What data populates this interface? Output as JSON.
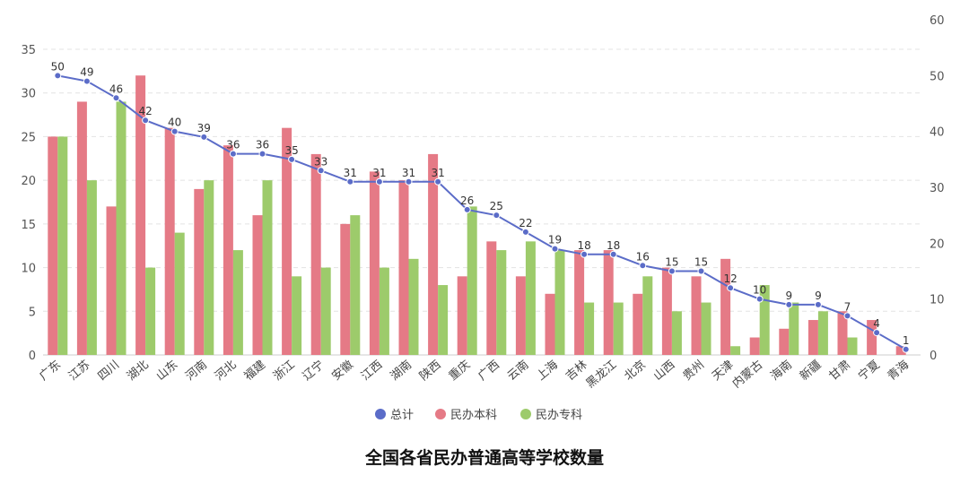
{
  "chart_data": {
    "type": "bar+line",
    "title": "全国各省民办普通高等学校数量",
    "categories": [
      "广东",
      "江苏",
      "四川",
      "湖北",
      "山东",
      "河南",
      "河北",
      "福建",
      "浙江",
      "辽宁",
      "安徽",
      "江西",
      "湖南",
      "陕西",
      "重庆",
      "广西",
      "云南",
      "上海",
      "吉林",
      "黑龙江",
      "北京",
      "山西",
      "贵州",
      "天津",
      "内蒙古",
      "海南",
      "新疆",
      "甘肃",
      "宁夏",
      "青海"
    ],
    "series": [
      {
        "name": "总计",
        "type": "line",
        "axis": "right",
        "color": "#5b6cc8",
        "values": [
          50,
          49,
          46,
          42,
          40,
          39,
          36,
          36,
          35,
          33,
          31,
          31,
          31,
          31,
          26,
          25,
          22,
          19,
          18,
          18,
          16,
          15,
          15,
          12,
          10,
          9,
          9,
          7,
          4,
          1
        ]
      },
      {
        "name": "民办本科",
        "type": "bar",
        "axis": "left",
        "color": "#e57a86",
        "values": [
          25,
          29,
          17,
          32,
          26,
          19,
          24,
          16,
          26,
          23,
          15,
          21,
          20,
          23,
          9,
          13,
          9,
          7,
          12,
          12,
          7,
          10,
          9,
          11,
          2,
          3,
          4,
          5,
          4,
          1
        ]
      },
      {
        "name": "民办专科",
        "type": "bar",
        "axis": "left",
        "color": "#9dcb6b",
        "values": [
          25,
          20,
          29,
          10,
          14,
          20,
          12,
          20,
          9,
          10,
          16,
          10,
          11,
          8,
          17,
          12,
          13,
          12,
          6,
          6,
          9,
          5,
          6,
          1,
          8,
          6,
          5,
          2,
          0,
          0
        ]
      }
    ],
    "left_axis": {
      "ylim": [
        0,
        35
      ],
      "ticks": [
        0,
        5,
        10,
        15,
        20,
        25,
        30,
        35
      ]
    },
    "right_axis": {
      "ylim": [
        0,
        60
      ],
      "ticks": [
        0,
        10,
        20,
        30,
        40,
        50,
        60
      ]
    },
    "grid": true,
    "legend": "bottom"
  }
}
